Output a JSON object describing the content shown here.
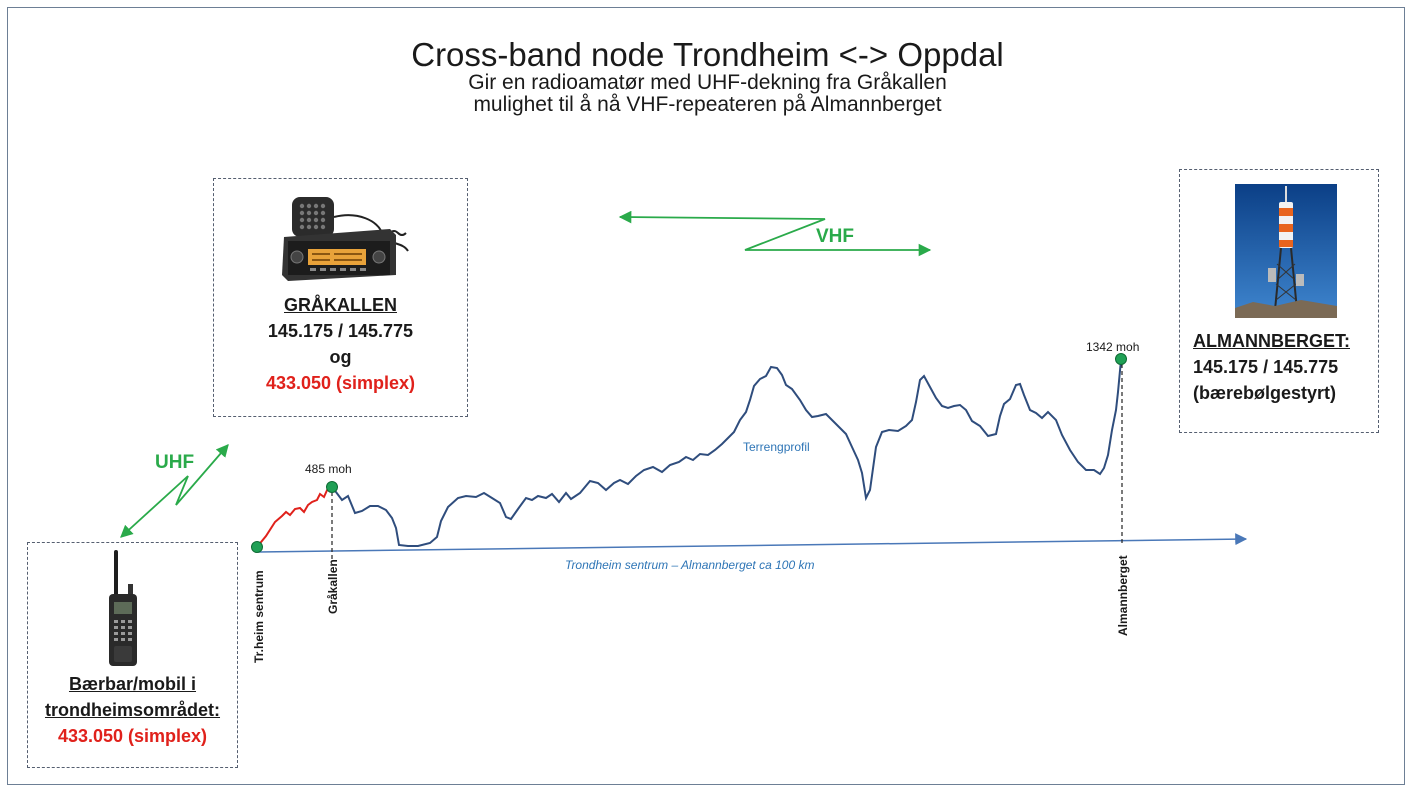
{
  "title": "Cross-band node Trondheim <-> Oppdal",
  "subtitle": {
    "line1": "Gir en radioamatør med UHF-dekning fra Gråkallen",
    "line2": "mulighet til å nå VHF-repeateren på Almannberget"
  },
  "grakallen_box": {
    "heading": "GRÅKALLEN",
    "vhf_freq": "145.175 / 145.775",
    "connector": "og",
    "uhf_freq": "433.050 (simplex)"
  },
  "almannberget_box": {
    "heading": "ALMANNBERGET:",
    "vhf_freq": "145.175 / 145.775",
    "note": "(bærebølgestyrt)"
  },
  "handheld_box": {
    "line1": "Bærbar/mobil i",
    "line2": "trondheimsområdet:",
    "uhf_freq": "433.050 (simplex)"
  },
  "links": {
    "vhf_label": "VHF",
    "uhf_label": "UHF"
  },
  "profile": {
    "terrain_label": "Terrengprofil",
    "axis_caption": "Trondheim sentrum – Almannberget ca 100 km",
    "points": {
      "start_label": "Tr.heim sentrum",
      "grakallen_label": "Gråkallen",
      "almannberget_label": "Almannberget",
      "grakallen_height": "485 moh",
      "almannberget_height": "1342 moh"
    }
  },
  "colors": {
    "vhf_link": "#2aaa4a",
    "uhf_link": "#2aaa4a",
    "terrain_line": "#2f4d7d",
    "uhf_segment": "#e0211b",
    "axis": "#4a78b8",
    "point_marker": "#1fa055",
    "uhf_frequency_text": "#e0211b"
  },
  "icons": {
    "mobile_radio": "mobile-transceiver-icon",
    "handheld_radio": "handheld-radio-icon",
    "repeater_mast": "antenna-mast-photo"
  }
}
